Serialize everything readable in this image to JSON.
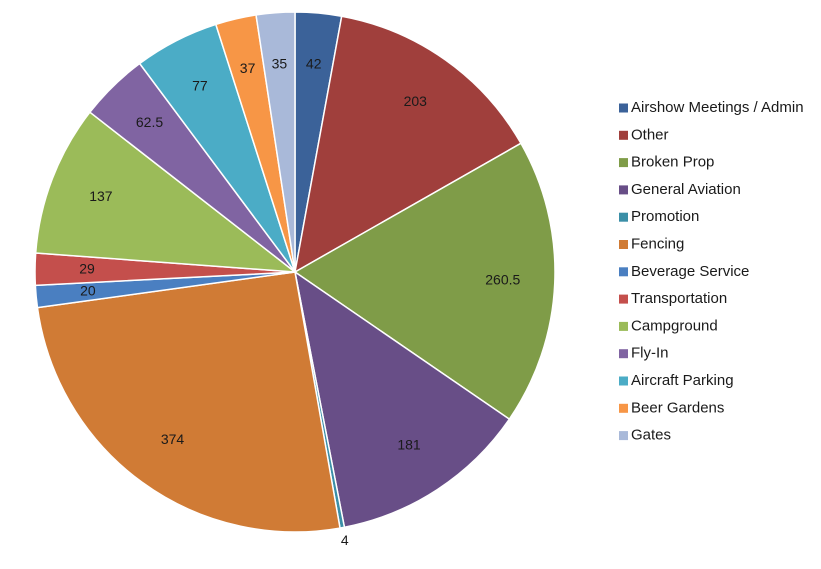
{
  "chart_data": {
    "type": "pie",
    "start_angle_deg": 0,
    "direction": "clockwise",
    "legend_position": "right",
    "slices": [
      {
        "label": "Airshow Meetings / Admin",
        "value": 42,
        "display": "42",
        "color": "#3b6299"
      },
      {
        "label": "Other",
        "value": 203,
        "display": "203",
        "color": "#a03f3c"
      },
      {
        "label": "Broken Prop",
        "value": 260.5,
        "display": "260.5",
        "color": "#7f9c48"
      },
      {
        "label": "General Aviation",
        "value": 181,
        "display": "181",
        "color": "#684e87"
      },
      {
        "label": "Promotion",
        "value": 4,
        "display": "4",
        "color": "#3b8fa7"
      },
      {
        "label": "Fencing",
        "value": 374,
        "display": "374",
        "color": "#d07b35"
      },
      {
        "label": "Beverage Service",
        "value": 20,
        "display": "20",
        "color": "#4a7fc1"
      },
      {
        "label": "Transportation",
        "value": 29,
        "display": "29",
        "color": "#c44f4c"
      },
      {
        "label": "Campground",
        "value": 137,
        "display": "137",
        "color": "#9bbb59"
      },
      {
        "label": "Fly-In",
        "value": 62.5,
        "display": "62.5",
        "color": "#8064a2"
      },
      {
        "label": "Aircraft Parking",
        "value": 77,
        "display": "77",
        "color": "#4bacc6"
      },
      {
        "label": "Beer Gardens",
        "value": 37,
        "display": "37",
        "color": "#f79646"
      },
      {
        "label": "Gates",
        "value": 35,
        "display": "35",
        "color": "#a9b9d9"
      }
    ]
  }
}
